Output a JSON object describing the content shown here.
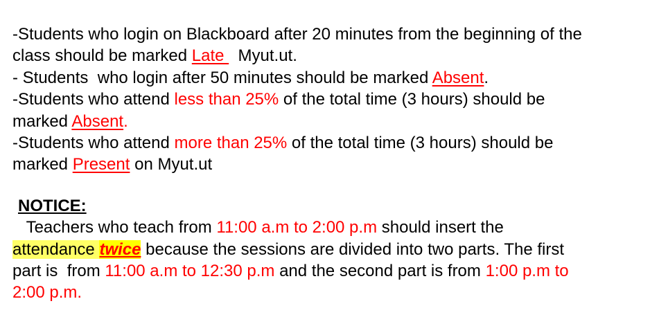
{
  "colors": {
    "text": "#000000",
    "emphasis_red": "#ff0000",
    "highlight_yellow": "#ffff66"
  },
  "rules": {
    "r1": {
      "line1": "-Students who login on Blackboard after 20 minutes from the beginning of the",
      "line2_pre": "class should be marked ",
      "late": "Late ",
      "line2_post": "  Myut.ut."
    },
    "r2": {
      "pre": "- Students  who login after 50 minutes should be marked ",
      "absent": "Absent",
      "post": "."
    },
    "r3": {
      "pre": "-Students who attend ",
      "threshold": "less than 25%",
      "post": " of the total time (3 hours) should be",
      "line2_pre": "marked ",
      "absent": "Absent",
      "line2_post": "."
    },
    "r4": {
      "pre": "-Students who attend ",
      "threshold": "more than 25%",
      "post": " of the total time (3 hours) should be",
      "line2_pre": "marked ",
      "present": "Present",
      "line2_post": " on Myut.ut"
    }
  },
  "notice": {
    "heading": "NOTICE:",
    "l1_pre": "   Teachers who teach from ",
    "l1_time": "11:00 a.m to 2:00 p.m",
    "l1_post": " should insert the",
    "l2_attendance": "attendance",
    "l2_twice": "twice",
    "l2_post": " because the sessions are divided into two parts. The first",
    "l3_pre": "part is  from ",
    "l3_time1": "11:00 a.m to 12:30 p.m",
    "l3_mid": " and the second part is from ",
    "l3_time2": "1:00 p.m to",
    "l4_time2": "2:00 p.m."
  }
}
